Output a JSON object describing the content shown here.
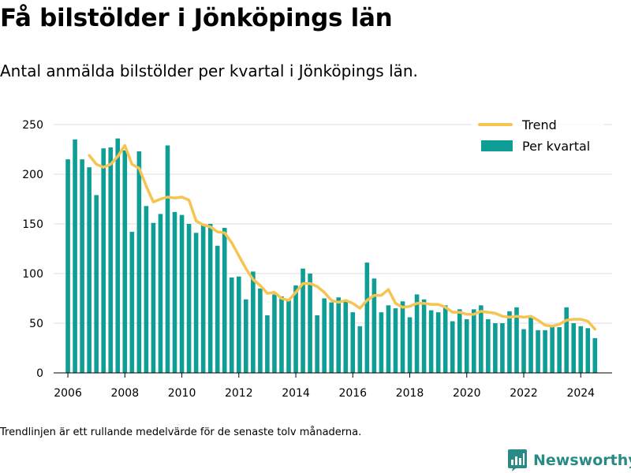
{
  "header": {
    "title": "Få bilstölder i Jönköpings län",
    "subtitle": "Antal anmälda bilstölder per kvartal i Jönköpings län."
  },
  "footer": {
    "note": "Trendlinjen är ett rullande medelvärde för de senaste tolv månaderna.",
    "brand": "Newsworthy"
  },
  "colors": {
    "bar": "#0e9e96",
    "trend": "#f5c451",
    "grid": "#dcdcdc",
    "axis": "#000000",
    "brand": "#2a8b84"
  },
  "icons": {
    "brand_logo": "bar-chart-logo-icon"
  },
  "chart_data": {
    "type": "bar",
    "x_label_format": "year",
    "xlim": [
      2005.5,
      2025.1
    ],
    "ylim": [
      0,
      250
    ],
    "x_ticks": [
      2006,
      2008,
      2010,
      2012,
      2014,
      2016,
      2018,
      2020,
      2022,
      2024
    ],
    "y_ticks": [
      0,
      50,
      100,
      150,
      200,
      250
    ],
    "grid": true,
    "legend_position": "top-right",
    "series": [
      {
        "name": "Per kvartal",
        "type": "bar",
        "x": [
          2006.0,
          2006.25,
          2006.5,
          2006.75,
          2007.0,
          2007.25,
          2007.5,
          2007.75,
          2008.0,
          2008.25,
          2008.5,
          2008.75,
          2009.0,
          2009.25,
          2009.5,
          2009.75,
          2010.0,
          2010.25,
          2010.5,
          2010.75,
          2011.0,
          2011.25,
          2011.5,
          2011.75,
          2012.0,
          2012.25,
          2012.5,
          2012.75,
          2013.0,
          2013.25,
          2013.5,
          2013.75,
          2014.0,
          2014.25,
          2014.5,
          2014.75,
          2015.0,
          2015.25,
          2015.5,
          2015.75,
          2016.0,
          2016.25,
          2016.5,
          2016.75,
          2017.0,
          2017.25,
          2017.5,
          2017.75,
          2018.0,
          2018.25,
          2018.5,
          2018.75,
          2019.0,
          2019.25,
          2019.5,
          2019.75,
          2020.0,
          2020.25,
          2020.5,
          2020.75,
          2021.0,
          2021.25,
          2021.5,
          2021.75,
          2022.0,
          2022.25,
          2022.5,
          2022.75,
          2023.0,
          2023.25,
          2023.5,
          2023.75,
          2024.0,
          2024.25,
          2024.5
        ],
        "values": [
          215,
          235,
          215,
          207,
          179,
          226,
          227,
          236,
          224,
          142,
          223,
          168,
          151,
          160,
          229,
          162,
          159,
          150,
          141,
          149,
          150,
          128,
          146,
          96,
          97,
          74,
          102,
          85,
          58,
          79,
          77,
          73,
          88,
          105,
          100,
          58,
          75,
          71,
          76,
          73,
          61,
          47,
          111,
          95,
          61,
          68,
          65,
          72,
          56,
          79,
          74,
          63,
          61,
          68,
          52,
          64,
          54,
          64,
          68,
          54,
          50,
          50,
          62,
          66,
          44,
          56,
          43,
          43,
          48,
          46,
          66,
          50,
          47,
          45,
          35
        ]
      },
      {
        "name": "Trend",
        "type": "line",
        "x": [
          2006.75,
          2007.0,
          2007.25,
          2007.5,
          2007.75,
          2008.0,
          2008.25,
          2008.5,
          2008.75,
          2009.0,
          2009.25,
          2009.5,
          2009.75,
          2010.0,
          2010.25,
          2010.5,
          2010.75,
          2011.0,
          2011.25,
          2011.5,
          2011.75,
          2012.0,
          2012.25,
          2012.5,
          2012.75,
          2013.0,
          2013.25,
          2013.5,
          2013.75,
          2014.0,
          2014.25,
          2014.5,
          2014.75,
          2015.0,
          2015.25,
          2015.5,
          2015.75,
          2016.0,
          2016.25,
          2016.5,
          2016.75,
          2017.0,
          2017.25,
          2017.5,
          2017.75,
          2018.0,
          2018.25,
          2018.5,
          2018.75,
          2019.0,
          2019.25,
          2019.5,
          2019.75,
          2020.0,
          2020.25,
          2020.5,
          2020.75,
          2021.0,
          2021.25,
          2021.5,
          2021.75,
          2022.0,
          2022.25,
          2022.5,
          2022.75,
          2023.0,
          2023.25,
          2023.5,
          2023.75,
          2024.0,
          2024.25,
          2024.5
        ],
        "values": [
          219,
          210,
          207,
          210,
          218,
          229,
          210,
          206,
          188,
          172,
          175,
          177,
          176,
          177,
          174,
          153,
          149,
          147,
          142,
          141,
          131,
          118,
          105,
          94,
          88,
          80,
          81,
          75,
          73,
          81,
          90,
          90,
          87,
          81,
          73,
          71,
          73,
          70,
          65,
          73,
          78,
          78,
          84,
          70,
          66,
          67,
          70,
          70,
          69,
          69,
          66,
          61,
          61,
          59,
          59,
          62,
          61,
          60,
          57,
          56,
          57,
          56,
          57,
          53,
          48,
          47,
          49,
          53,
          54,
          54,
          52,
          44
        ]
      }
    ]
  }
}
